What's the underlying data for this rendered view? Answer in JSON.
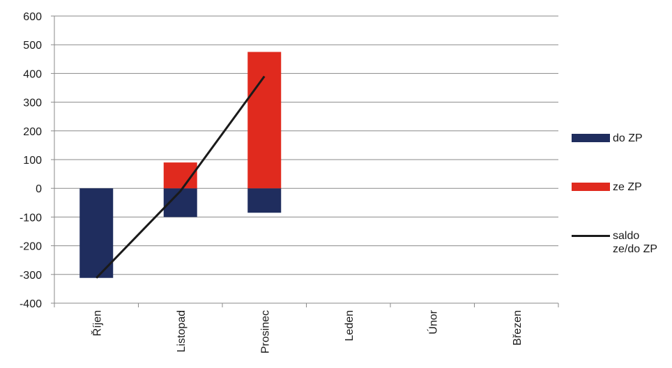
{
  "chart_data": {
    "type": "bar",
    "stacked": true,
    "categories": [
      "Říjen",
      "Listopad",
      "Prosinec",
      "Leden",
      "Únor",
      "Březen"
    ],
    "series": [
      {
        "name": "do ZP",
        "type": "bar",
        "color": "#1f2d5e",
        "values": [
          -312,
          -100,
          -85,
          null,
          null,
          null
        ]
      },
      {
        "name": "ze ZP",
        "type": "bar",
        "color": "#e02a1e",
        "values": [
          0,
          90,
          475,
          null,
          null,
          null
        ]
      },
      {
        "name": "saldo ze/do ZP",
        "type": "line",
        "color": "#1a1a1a",
        "values": [
          -312,
          -10,
          390,
          null,
          null,
          null
        ]
      }
    ],
    "ylim": [
      -400,
      600
    ],
    "yticks": [
      600,
      500,
      400,
      300,
      200,
      100,
      0,
      -100,
      -200,
      -300,
      -400
    ],
    "grid": true,
    "legend_position": "right"
  }
}
